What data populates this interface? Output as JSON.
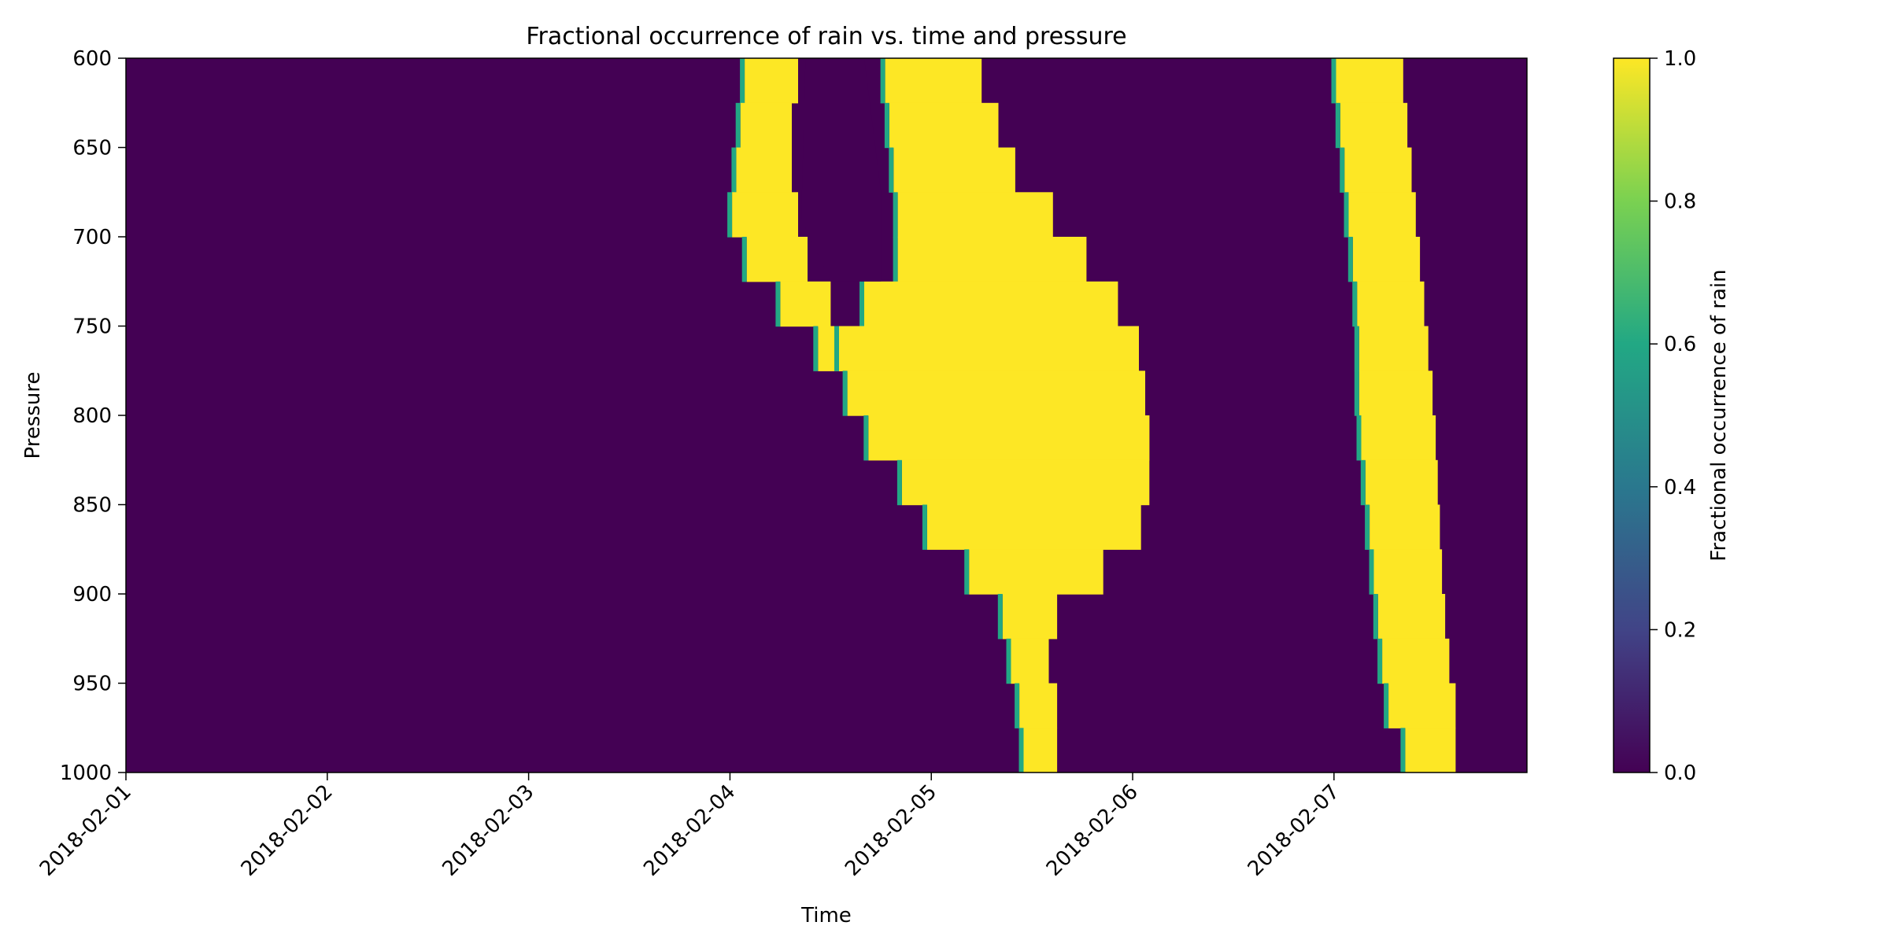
{
  "chart_data": {
    "type": "heatmap",
    "title": "Fractional occurrence of rain vs. time and pressure",
    "xlabel": "Time",
    "ylabel": "Pressure",
    "x_tick_labels": [
      "2018-02-01",
      "2018-02-02",
      "2018-02-03",
      "2018-02-04",
      "2018-02-05",
      "2018-02-06",
      "2018-02-07"
    ],
    "xlim": [
      "2018-02-01T00:00",
      "2018-02-07T23:00"
    ],
    "y_tick_labels": [
      "600",
      "650",
      "700",
      "750",
      "800",
      "850",
      "900",
      "950",
      "1000"
    ],
    "ylim": [
      1000,
      600
    ],
    "y_inverted": true,
    "colorbar": {
      "label": "Fractional occurrence of rain",
      "ticks": [
        "0.0",
        "0.2",
        "0.4",
        "0.6",
        "0.8",
        "1.0"
      ],
      "range": [
        0,
        1
      ],
      "colormap": "viridis",
      "colors": [
        "#440154",
        "#414487",
        "#2a788e",
        "#22a884",
        "#7ad151",
        "#fde725"
      ]
    },
    "pressure_levels": [
      600,
      625,
      650,
      675,
      700,
      725,
      750,
      775,
      800,
      825,
      850,
      875,
      900,
      925,
      950,
      975,
      1000
    ],
    "rain_regions": [
      {
        "name": "event-1",
        "value": 1.0,
        "edge_value": 0.6,
        "profile": [
          [
            600,
            "2018-02-04T02:00",
            "2018-02-04T08:30"
          ],
          [
            650,
            "2018-02-04T01:00",
            "2018-02-04T07:00"
          ],
          [
            700,
            "2018-02-04T00:00",
            "2018-02-04T08:30"
          ],
          [
            725,
            "2018-02-04T04:00",
            "2018-02-04T10:00"
          ],
          [
            750,
            "2018-02-04T08:00",
            "2018-02-04T14:00"
          ],
          [
            775,
            "2018-02-04T13:00",
            "2018-02-04T18:00"
          ]
        ]
      },
      {
        "name": "event-2",
        "value": 1.0,
        "edge_value": 0.6,
        "profile": [
          [
            600,
            "2018-02-04T18:00",
            "2018-02-05T04:00"
          ],
          [
            625,
            "2018-02-04T19:00",
            "2018-02-05T08:00"
          ],
          [
            650,
            "2018-02-04T19:00",
            "2018-02-05T08:00"
          ],
          [
            675,
            "2018-02-04T20:00",
            "2018-02-05T12:00"
          ],
          [
            700,
            "2018-02-04T20:00",
            "2018-02-05T17:00"
          ],
          [
            725,
            "2018-02-04T20:00",
            "2018-02-05T20:00"
          ],
          [
            750,
            "2018-02-04T12:00",
            "2018-02-06T00:30"
          ],
          [
            775,
            "2018-02-04T14:00",
            "2018-02-06T01:00"
          ],
          [
            800,
            "2018-02-04T14:00",
            "2018-02-06T02:00"
          ],
          [
            825,
            "2018-02-04T19:00",
            "2018-02-06T02:00"
          ],
          [
            850,
            "2018-02-04T22:00",
            "2018-02-06T02:00"
          ],
          [
            875,
            "2018-02-05T01:00",
            "2018-02-06T00:00"
          ],
          [
            900,
            "2018-02-05T08:00",
            "2018-02-05T17:00"
          ],
          [
            925,
            "2018-02-05T09:00",
            "2018-02-05T13:00"
          ],
          [
            950,
            "2018-02-05T10:00",
            "2018-02-05T15:00"
          ],
          [
            975,
            "2018-02-05T11:00",
            "2018-02-05T15:00"
          ],
          [
            1000,
            "2018-02-05T11:00",
            "2018-02-05T15:00"
          ]
        ]
      },
      {
        "name": "event-3",
        "value": 1.0,
        "edge_value": 0.6,
        "profile": [
          [
            600,
            "2018-02-07T00:00",
            "2018-02-07T08:00"
          ],
          [
            650,
            "2018-02-07T01:00",
            "2018-02-07T09:00"
          ],
          [
            700,
            "2018-02-07T02:00",
            "2018-02-07T10:00"
          ],
          [
            750,
            "2018-02-07T03:00",
            "2018-02-07T11:00"
          ],
          [
            800,
            "2018-02-07T03:00",
            "2018-02-07T12:00"
          ],
          [
            850,
            "2018-02-07T04:00",
            "2018-02-07T12:30"
          ],
          [
            900,
            "2018-02-07T05:00",
            "2018-02-07T13:00"
          ],
          [
            950,
            "2018-02-07T06:00",
            "2018-02-07T14:00"
          ],
          [
            975,
            "2018-02-07T07:00",
            "2018-02-07T15:00"
          ],
          [
            1000,
            "2018-02-07T10:00",
            "2018-02-07T14:00"
          ]
        ]
      }
    ],
    "holes": [
      {
        "value": 0.0,
        "corners": [
          [
            "2018-02-04T09:00",
            600
          ],
          [
            "2018-02-04T16:00",
            600
          ],
          [
            "2018-02-04T18:00",
            675
          ],
          [
            "2018-02-04T18:00",
            725
          ],
          [
            "2018-02-04T12:00",
            725
          ],
          [
            "2018-02-04T08:30",
            690
          ]
        ]
      }
    ]
  }
}
